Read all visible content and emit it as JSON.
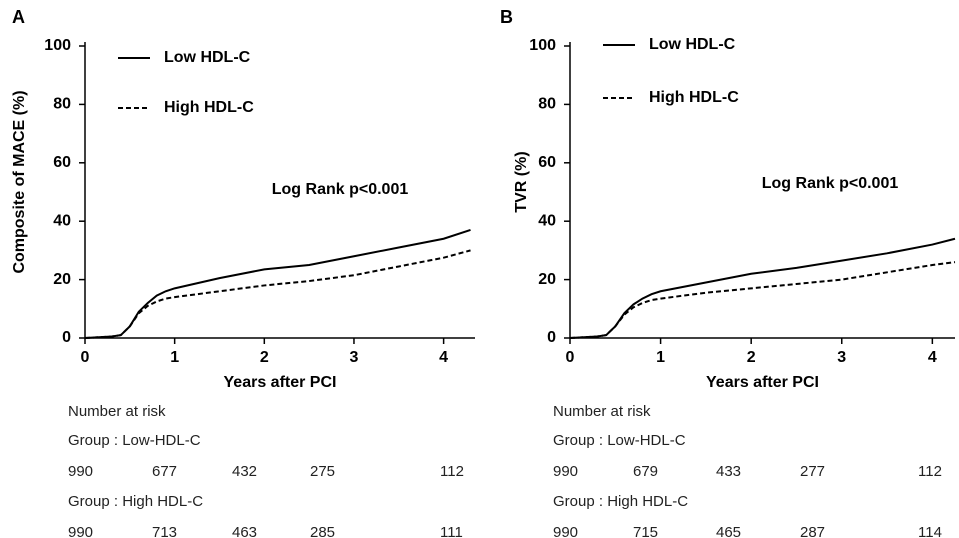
{
  "chart_data": [
    {
      "type": "line",
      "panel_label": "A",
      "y_label": "Composite of MACE (%)",
      "x_label": "Years after PCI",
      "annotation": "Log Rank p<0.001",
      "legend": "upper left",
      "x": [
        0,
        0.3,
        0.4,
        0.5,
        0.6,
        0.7,
        0.8,
        0.9,
        1,
        1.5,
        2,
        2.5,
        3,
        3.5,
        4,
        4.3
      ],
      "series": [
        {
          "name": "Low HDL-C",
          "color": "#000000",
          "line_style": "solid",
          "values": [
            0,
            0.5,
            1,
            4,
            9,
            12,
            14.5,
            16,
            17,
            20.5,
            23.5,
            25,
            28,
            31,
            34,
            37
          ]
        },
        {
          "name": "High HDL-C",
          "color": "#000000",
          "line_style": "dashed",
          "values": [
            0,
            0.5,
            1,
            4,
            8.5,
            11,
            12.5,
            13.5,
            14,
            16,
            18,
            19.5,
            21.5,
            24.5,
            27.5,
            30
          ]
        }
      ],
      "xlim": [
        0,
        4.35
      ],
      "ylim": [
        0,
        100
      ],
      "xticks": [
        0,
        1,
        2,
        3,
        4
      ],
      "yticks": [
        0,
        20,
        40,
        60,
        80,
        100
      ],
      "risk_table": {
        "title": "Number at risk",
        "groups": [
          {
            "label": "Group : Low-HDL-C",
            "values": [
              990,
              677,
              432,
              275,
              112
            ]
          },
          {
            "label": "Group : High HDL-C",
            "values": [
              990,
              713,
              463,
              285,
              111
            ]
          }
        ]
      }
    },
    {
      "type": "line",
      "panel_label": "B",
      "y_label": "TVR (%)",
      "x_label": "Years after PCI",
      "annotation": "Log Rank p<0.001",
      "legend": "upper left",
      "x": [
        0,
        0.3,
        0.4,
        0.5,
        0.6,
        0.7,
        0.8,
        0.9,
        1,
        1.5,
        2,
        2.5,
        3,
        3.5,
        4,
        4.25
      ],
      "series": [
        {
          "name": "Low HDL-C",
          "color": "#000000",
          "line_style": "solid",
          "values": [
            0,
            0.5,
            1,
            4,
            8.5,
            11.5,
            13.5,
            15,
            16,
            19,
            22,
            24,
            26.5,
            29,
            32,
            34
          ]
        },
        {
          "name": "High HDL-C",
          "color": "#000000",
          "line_style": "dashed",
          "values": [
            0,
            0.5,
            1,
            4,
            8,
            10.5,
            12,
            13,
            13.5,
            15.5,
            17,
            18.5,
            20,
            22.5,
            25,
            26
          ]
        }
      ],
      "xlim": [
        0,
        4.25
      ],
      "ylim": [
        0,
        100
      ],
      "xticks": [
        0,
        1,
        2,
        3,
        4
      ],
      "yticks": [
        0,
        20,
        40,
        60,
        80,
        100
      ],
      "risk_table": {
        "title": "Number at risk",
        "groups": [
          {
            "label": "Group : Low-HDL-C",
            "values": [
              990,
              679,
              433,
              277,
              112
            ]
          },
          {
            "label": "Group : High HDL-C",
            "values": [
              990,
              715,
              465,
              287,
              114
            ]
          }
        ]
      }
    }
  ]
}
